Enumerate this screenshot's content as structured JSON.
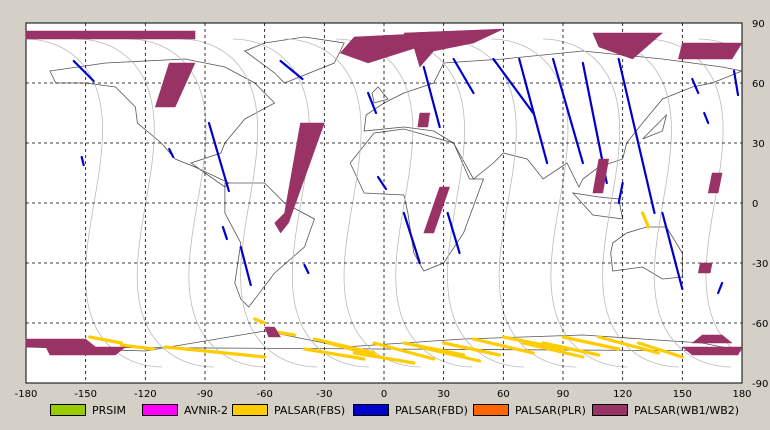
{
  "chart_data": {
    "type": "scatter",
    "title": "",
    "xlabel": "",
    "ylabel": "",
    "xlim": [
      -180,
      180
    ],
    "ylim": [
      -90,
      90
    ],
    "x_ticks": [
      "-180",
      "-150",
      "-120",
      "-90",
      "-60",
      "-30",
      "0",
      "30",
      "60",
      "90",
      "120",
      "150",
      "180"
    ],
    "y_ticks_right": [
      "90",
      "60",
      "30",
      "0",
      "-30",
      "-60",
      "-90"
    ],
    "grid": "dashed",
    "legend_position": "bottom",
    "series": [
      {
        "name": "PRSIM",
        "color": "#99cc00",
        "segments": []
      },
      {
        "name": "AVNIR-2",
        "color": "#ff00ff",
        "segments": []
      },
      {
        "name": "PALSAR(FBS)",
        "color": "#ffcc00",
        "segments": [
          {
            "lon": [
              -148,
              -132
            ],
            "lat": [
              -67,
              -70
            ]
          },
          {
            "lon": [
              -132,
              -116
            ],
            "lat": [
              -71,
              -73
            ]
          },
          {
            "lon": [
              -40,
              -10
            ],
            "lat": [
              -73,
              -78
            ]
          },
          {
            "lon": [
              -35,
              -5
            ],
            "lat": [
              -68,
              -75
            ]
          },
          {
            "lon": [
              -28,
              -2
            ],
            "lat": [
              -70,
              -77
            ]
          },
          {
            "lon": [
              -15,
              15
            ],
            "lat": [
              -75,
              -80
            ]
          },
          {
            "lon": [
              -5,
              25
            ],
            "lat": [
              -70,
              -78
            ]
          },
          {
            "lon": [
              10,
              40
            ],
            "lat": [
              -70,
              -76
            ]
          },
          {
            "lon": [
              18,
              48
            ],
            "lat": [
              -72,
              -79
            ]
          },
          {
            "lon": [
              30,
              58
            ],
            "lat": [
              -70,
              -76
            ]
          },
          {
            "lon": [
              45,
              75
            ],
            "lat": [
              -68,
              -75
            ]
          },
          {
            "lon": [
              60,
              90
            ],
            "lat": [
              -67,
              -73
            ]
          },
          {
            "lon": [
              70,
              100
            ],
            "lat": [
              -70,
              -77
            ]
          },
          {
            "lon": [
              80,
              108
            ],
            "lat": [
              -70,
              -76
            ]
          },
          {
            "lon": [
              90,
              118
            ],
            "lat": [
              -67,
              -73
            ]
          },
          {
            "lon": [
              108,
              138
            ],
            "lat": [
              -67,
              -75
            ]
          },
          {
            "lon": [
              128,
              150
            ],
            "lat": [
              -70,
              -77
            ]
          },
          {
            "lon": [
              -58,
              -45
            ],
            "lat": [
              -64,
              -66
            ]
          },
          {
            "lon": [
              130,
              133
            ],
            "lat": [
              -5,
              -12
            ]
          },
          {
            "lon": [
              -60,
              -65
            ],
            "lat": [
              -60,
              -58
            ]
          },
          {
            "lon": [
              -110,
              -60
            ],
            "lat": [
              -72,
              -77
            ]
          }
        ]
      },
      {
        "name": "PALSAR(FBD)",
        "color": "#0000cc",
        "segments": [
          {
            "lon": [
              -156,
              -146
            ],
            "lat": [
              71,
              61
            ]
          },
          {
            "lon": [
              -52,
              -41
            ],
            "lat": [
              71,
              62
            ]
          },
          {
            "lon": [
              -88,
              -78
            ],
            "lat": [
              40,
              6
            ]
          },
          {
            "lon": [
              -108,
              -106
            ],
            "lat": [
              27,
              23
            ]
          },
          {
            "lon": [
              -152,
              -151
            ],
            "lat": [
              23,
              19
            ]
          },
          {
            "lon": [
              -72,
              -67
            ],
            "lat": [
              -22,
              -41
            ]
          },
          {
            "lon": [
              -81,
              -79
            ],
            "lat": [
              -12,
              -18
            ]
          },
          {
            "lon": [
              -40,
              -38
            ],
            "lat": [
              -31,
              -35
            ]
          },
          {
            "lon": [
              -8,
              -4
            ],
            "lat": [
              55,
              45
            ]
          },
          {
            "lon": [
              -3,
              1
            ],
            "lat": [
              13,
              7
            ]
          },
          {
            "lon": [
              10,
              18
            ],
            "lat": [
              -5,
              -30
            ]
          },
          {
            "lon": [
              32,
              38
            ],
            "lat": [
              -5,
              -25
            ]
          },
          {
            "lon": [
              20,
              28
            ],
            "lat": [
              68,
              38
            ]
          },
          {
            "lon": [
              35,
              45
            ],
            "lat": [
              72,
              55
            ]
          },
          {
            "lon": [
              55,
              75
            ],
            "lat": [
              72,
              45
            ]
          },
          {
            "lon": [
              68,
              82
            ],
            "lat": [
              72,
              20
            ]
          },
          {
            "lon": [
              85,
              100
            ],
            "lat": [
              72,
              20
            ]
          },
          {
            "lon": [
              100,
              112
            ],
            "lat": [
              70,
              10
            ]
          },
          {
            "lon": [
              118,
              136
            ],
            "lat": [
              72,
              -5
            ]
          },
          {
            "lon": [
              140,
              150
            ],
            "lat": [
              -5,
              -43
            ]
          },
          {
            "lon": [
              155,
              158
            ],
            "lat": [
              62,
              55
            ]
          },
          {
            "lon": [
              176,
              178
            ],
            "lat": [
              66,
              54
            ]
          },
          {
            "lon": [
              161,
              163
            ],
            "lat": [
              45,
              40
            ]
          },
          {
            "lon": [
              120,
              118
            ],
            "lat": [
              10,
              0
            ]
          },
          {
            "lon": [
              170,
              168
            ],
            "lat": [
              -40,
              -45
            ]
          }
        ]
      },
      {
        "name": "PALSAR(PLR)",
        "color": "#ff6600",
        "segments": []
      },
      {
        "name": "PALSAR(WB1/WB2)",
        "color": "#993366",
        "swaths": [
          [
            [
              -180,
              86
            ],
            [
              -95,
              86
            ],
            [
              -95,
              82
            ],
            [
              -180,
              82
            ]
          ],
          [
            [
              -108,
              70
            ],
            [
              -95,
              70
            ],
            [
              -105,
              48
            ],
            [
              -115,
              48
            ]
          ],
          [
            [
              -15,
              83
            ],
            [
              25,
              85
            ],
            [
              30,
              82
            ],
            [
              -8,
              70
            ],
            [
              -22,
              75
            ]
          ],
          [
            [
              10,
              85
            ],
            [
              60,
              87
            ],
            [
              45,
              80
            ],
            [
              25,
              76
            ],
            [
              18,
              68
            ],
            [
              15,
              78
            ]
          ],
          [
            [
              105,
              85
            ],
            [
              140,
              85
            ],
            [
              125,
              72
            ],
            [
              108,
              78
            ]
          ],
          [
            [
              150,
              80
            ],
            [
              180,
              80
            ],
            [
              175,
              72
            ],
            [
              148,
              72
            ]
          ],
          [
            [
              -30,
              40
            ],
            [
              -42,
              40
            ],
            [
              -50,
              -5
            ],
            [
              -55,
              -10
            ],
            [
              -52,
              -15
            ],
            [
              -48,
              -10
            ]
          ],
          [
            [
              18,
              45
            ],
            [
              23,
              45
            ],
            [
              22,
              38
            ],
            [
              17,
              38
            ]
          ],
          [
            [
              28,
              8
            ],
            [
              33,
              8
            ],
            [
              25,
              -15
            ],
            [
              20,
              -15
            ]
          ],
          [
            [
              108,
              22
            ],
            [
              113,
              22
            ],
            [
              110,
              5
            ],
            [
              105,
              5
            ]
          ],
          [
            [
              165,
              15
            ],
            [
              170,
              15
            ],
            [
              168,
              5
            ],
            [
              163,
              5
            ]
          ],
          [
            [
              159,
              -30
            ],
            [
              165,
              -30
            ],
            [
              164,
              -35
            ],
            [
              158,
              -35
            ]
          ],
          [
            [
              -60,
              -62
            ],
            [
              -55,
              -62
            ],
            [
              -52,
              -67
            ],
            [
              -58,
              -67
            ]
          ],
          [
            [
              -180,
              -68
            ],
            [
              -150,
              -68
            ],
            [
              -145,
              -72
            ],
            [
              -180,
              -72
            ]
          ],
          [
            [
              -170,
              -72
            ],
            [
              -130,
              -72
            ],
            [
              -135,
              -76
            ],
            [
              -168,
              -76
            ]
          ],
          [
            [
              155,
              -70
            ],
            [
              175,
              -70
            ],
            [
              170,
              -66
            ],
            [
              160,
              -66
            ]
          ],
          [
            [
              150,
              -72
            ],
            [
              180,
              -72
            ],
            [
              178,
              -76
            ],
            [
              155,
              -76
            ]
          ]
        ]
      }
    ]
  },
  "legend": [
    {
      "label": "PRSIM",
      "color": "#99cc00"
    },
    {
      "label": "AVNIR-2",
      "color": "#ff00ff"
    },
    {
      "label": "PALSAR(FBS)",
      "color": "#ffcc00"
    },
    {
      "label": "PALSAR(FBD)",
      "color": "#0000cc"
    },
    {
      "label": "PALSAR(PLR)",
      "color": "#ff6600"
    },
    {
      "label": "PALSAR(WB1/WB2)",
      "color": "#993366"
    }
  ]
}
